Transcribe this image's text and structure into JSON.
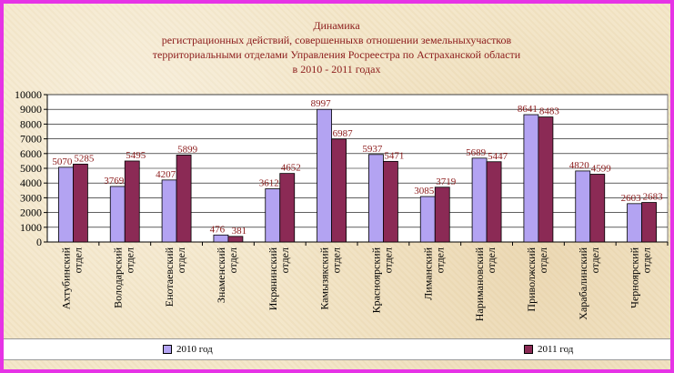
{
  "colors": {
    "border": "#e633e6",
    "title": "#8b1a1a",
    "series_2010": "#b3a3f2",
    "series_2011": "#8b2a55",
    "label": "#8b1a1a"
  },
  "chart_data": {
    "type": "bar",
    "title": [
      "Динамика",
      "регистрационных действий, совершенныхв отношении земельныхучастков",
      "территориальными отделами Управления Росреестра по Астраханской области",
      "в 2010 - 2011 годах"
    ],
    "categories": [
      [
        "Ахтубинский",
        "отдел"
      ],
      [
        "Володарский",
        "отдел"
      ],
      [
        "Енотаевский",
        "отдел"
      ],
      [
        "Знаменский",
        "отдел"
      ],
      [
        "Икрянинский",
        "отдел"
      ],
      [
        "Камызякский",
        "отдел"
      ],
      [
        "Красноярский",
        "отдел"
      ],
      [
        "Лиманский",
        "отдел"
      ],
      [
        "Наримановский",
        "отдел"
      ],
      [
        "Приволжский",
        "отдел"
      ],
      [
        "Харабалинский",
        "отдел"
      ],
      [
        "Черноярский",
        "отдел"
      ]
    ],
    "series": [
      {
        "name": "2010 год",
        "values": [
          5070,
          3769,
          4207,
          476,
          3612,
          8997,
          5937,
          3085,
          5689,
          8641,
          4820,
          2603
        ]
      },
      {
        "name": "2011 год",
        "values": [
          5285,
          5495,
          5899,
          381,
          4652,
          6987,
          5471,
          3719,
          5447,
          8483,
          4599,
          2683
        ]
      }
    ],
    "ylim": [
      0,
      10000
    ],
    "yticks": [
      "0",
      "1000",
      "2000",
      "3000",
      "4000",
      "5000",
      "6000",
      "7000",
      "8000",
      "9000",
      "10000"
    ],
    "grid": true,
    "legend_position": "bottom"
  }
}
